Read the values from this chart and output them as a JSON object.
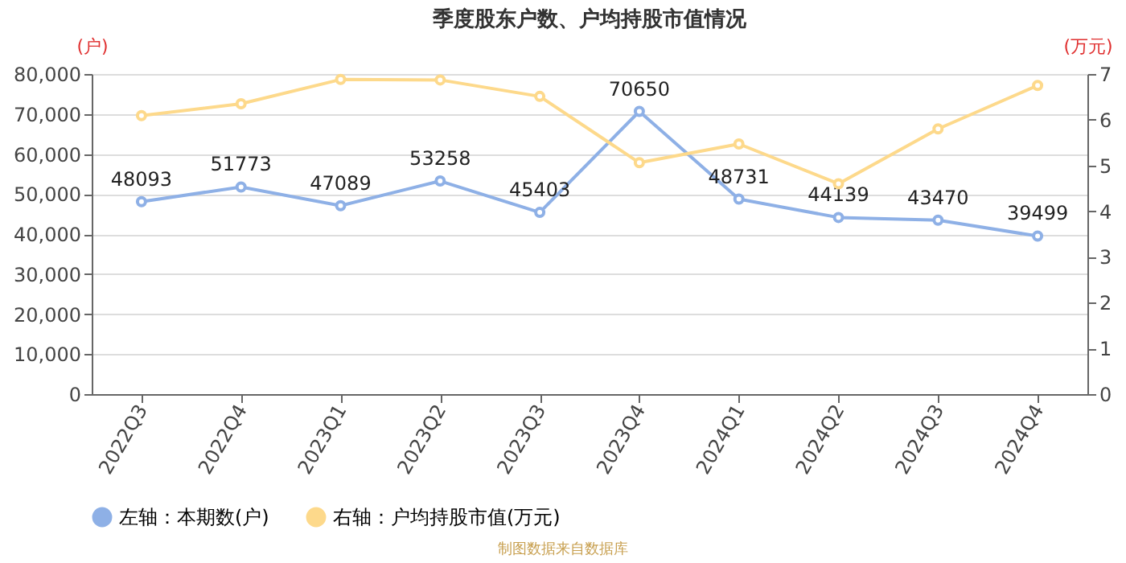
{
  "chart_data": {
    "type": "line",
    "title": "季度股东户数、户均持股市值情况",
    "ylabel": "(户)",
    "y2label": "(万元)",
    "categories": [
      "2022Q3",
      "2022Q4",
      "2023Q1",
      "2023Q2",
      "2023Q3",
      "2023Q4",
      "2024Q1",
      "2024Q2",
      "2024Q3",
      "2024Q4"
    ],
    "series": [
      {
        "name": "左轴：本期数(户)",
        "color": "#8eb0e6",
        "values": [
          48093,
          51773,
          47089,
          53258,
          45403,
          70650,
          48731,
          44139,
          43470,
          39499
        ],
        "value_labels": [
          "48093",
          "51773",
          "47089",
          "53258",
          "45403",
          "70650",
          "48731",
          "44139",
          "43470",
          "39499"
        ]
      },
      {
        "name": "右轴：户均持股市值(万元)",
        "color": "#fdd98b",
        "axis": "y2",
        "values": [
          6.09,
          6.35,
          6.88,
          6.87,
          6.51,
          5.06,
          5.47,
          4.6,
          5.8,
          6.75
        ]
      }
    ],
    "ylim": [
      0,
      80000
    ],
    "yticks": [
      {
        "value": 0,
        "label": "0"
      },
      {
        "value": 10000,
        "label": "10,000"
      },
      {
        "value": 20000,
        "label": "20,000"
      },
      {
        "value": 30000,
        "label": "30,000"
      },
      {
        "value": 40000,
        "label": "40,000"
      },
      {
        "value": 50000,
        "label": "50,000"
      },
      {
        "value": 60000,
        "label": "60,000"
      },
      {
        "value": 70000,
        "label": "70,000"
      },
      {
        "value": 80000,
        "label": "80,000"
      }
    ],
    "y2lim": [
      0,
      7
    ],
    "y2ticks": [
      0,
      1,
      2,
      3,
      4,
      5,
      6,
      7
    ],
    "grid": "y",
    "legend": "bottom",
    "marker": "circle",
    "annotations": [
      "制图数据来自数据库"
    ]
  }
}
